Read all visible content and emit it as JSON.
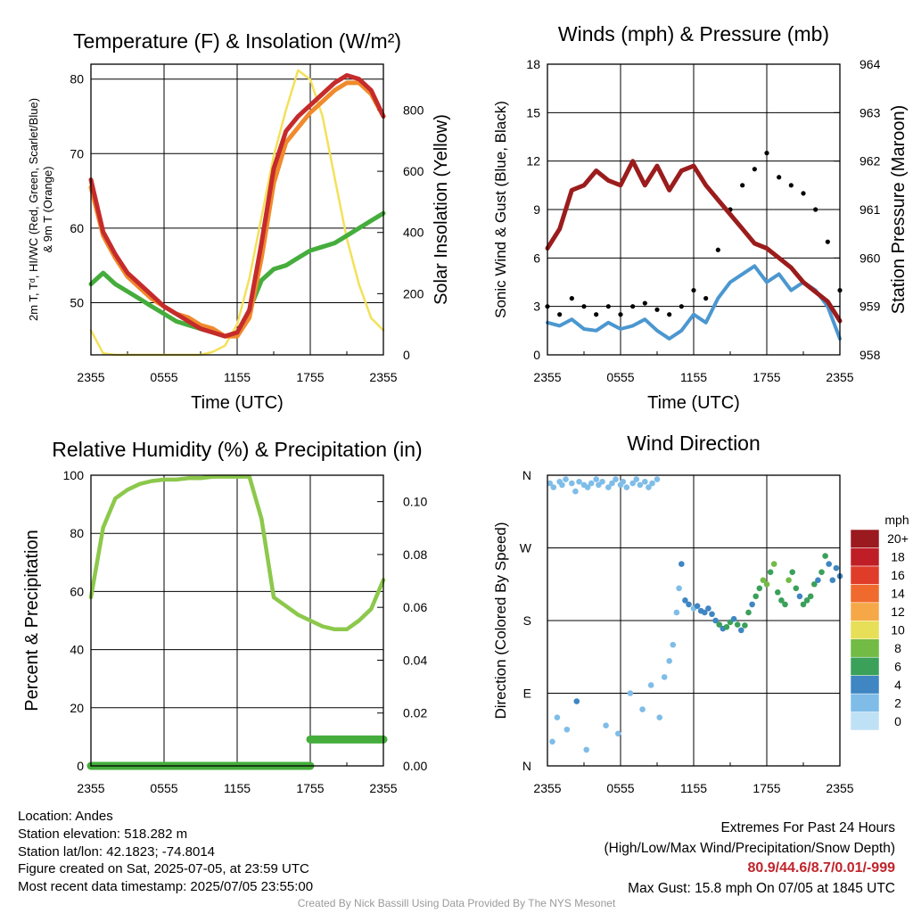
{
  "charts": {
    "temp": {
      "title": "Temperature (F) & Insolation (W/m²)",
      "ylabel_line1": "2m T, Tᵈ, HI/WC (Red, Green, Scarlet/Blue)",
      "ylabel_line2": "& 9m T (Orange)",
      "y2label": "Solar Insolation (Yellow)",
      "xlabel": "Time (UTC)"
    },
    "wind": {
      "title": "Winds (mph) & Pressure (mb)",
      "ylabel": "Sonic Wind & Gust (Blue, Black)",
      "y2label": "Station Pressure (Maroon)",
      "xlabel": "Time (UTC)"
    },
    "rh": {
      "title": "Relative Humidity (%) & Precipitation (in)",
      "ylabel": "Percent & Precipitation"
    },
    "dir": {
      "title": "Wind Direction",
      "ylabel": "Direction (Colored By Speed)",
      "colorbar_unit": "mph"
    }
  },
  "chart_data": [
    {
      "type": "line",
      "id": "temp",
      "title": "Temperature (F) & Insolation (W/m²)",
      "xlabel": "Time (UTC)",
      "x_ticks": [
        "2355",
        "0555",
        "1155",
        "1755",
        "2355"
      ],
      "ylim": [
        43,
        82
      ],
      "y_ticks": [
        50,
        60,
        70,
        80
      ],
      "y2lim": [
        0,
        950
      ],
      "y2_ticks": [
        0,
        200,
        400,
        600,
        800
      ],
      "x_hours": [
        0,
        1,
        2,
        3,
        4,
        5,
        6,
        7,
        8,
        9,
        10,
        11,
        12,
        13,
        14,
        15,
        16,
        17,
        18,
        19,
        20,
        21,
        22,
        23,
        24
      ],
      "series": [
        {
          "axis": "left",
          "color": "#c62b2b",
          "values": [
            66.5,
            59.5,
            56.5,
            54,
            52.5,
            51,
            49.5,
            48.5,
            47.5,
            46.5,
            46,
            45.5,
            46,
            49,
            58,
            68,
            73,
            75,
            76.5,
            78,
            79.5,
            80.5,
            80,
            78.5,
            75
          ]
        },
        {
          "axis": "left",
          "color": "#f08a2c",
          "values": [
            65.5,
            59,
            56,
            53.5,
            52,
            50.5,
            49.5,
            48.5,
            48,
            47,
            46.5,
            45.5,
            45.5,
            48,
            56,
            66,
            71.5,
            73.5,
            75.5,
            77,
            78.5,
            79.5,
            79.5,
            78,
            75
          ]
        },
        {
          "axis": "left",
          "color": "#45ad3c",
          "values": [
            52.5,
            54,
            52.5,
            51.5,
            50.5,
            49.5,
            48.5,
            47.5,
            47,
            46.5,
            46,
            45.5,
            46,
            49,
            53,
            54.5,
            55,
            56,
            57,
            57.5,
            58,
            59,
            60,
            61,
            62
          ]
        },
        {
          "axis": "right",
          "color": "#f3e15a",
          "values": [
            80,
            5,
            0,
            0,
            0,
            0,
            0,
            0,
            0,
            0,
            10,
            30,
            100,
            250,
            450,
            650,
            800,
            930,
            900,
            780,
            580,
            380,
            230,
            120,
            80
          ]
        }
      ]
    },
    {
      "type": "line",
      "id": "wind",
      "title": "Winds (mph) & Pressure (mb)",
      "xlabel": "Time (UTC)",
      "ylabel": "Sonic Wind & Gust (Blue, Black)",
      "y2label": "Station Pressure (Maroon)",
      "x_ticks": [
        "2355",
        "0555",
        "1155",
        "1755",
        "2355"
      ],
      "ylim": [
        0,
        18
      ],
      "y_ticks": [
        0,
        3,
        6,
        9,
        12,
        15,
        18
      ],
      "y2lim": [
        958,
        964
      ],
      "y2_ticks": [
        958,
        959,
        960,
        961,
        962,
        963,
        964
      ],
      "x_hours": [
        0,
        1,
        2,
        3,
        4,
        5,
        6,
        7,
        8,
        9,
        10,
        11,
        12,
        13,
        14,
        15,
        16,
        17,
        18,
        19,
        20,
        21,
        22,
        23,
        24
      ],
      "series": [
        {
          "axis": "right",
          "color": "#9b1c1c",
          "values": [
            960.2,
            960.6,
            961.4,
            961.5,
            961.8,
            961.6,
            961.5,
            962,
            961.5,
            961.9,
            961.4,
            961.8,
            961.9,
            961.5,
            961.2,
            960.9,
            960.6,
            960.3,
            960.2,
            960,
            959.8,
            959.5,
            959.3,
            959.1,
            958.7
          ]
        },
        {
          "axis": "left",
          "color": "#4b97d0",
          "values": [
            2,
            1.8,
            2.2,
            1.6,
            1.5,
            2,
            1.6,
            1.8,
            2.2,
            1.5,
            1,
            1.5,
            2.5,
            2,
            3.5,
            4.5,
            5,
            5.5,
            4.5,
            5,
            4,
            4.5,
            4,
            3,
            1
          ]
        },
        {
          "axis": "left",
          "color": "#000000",
          "values": [
            3,
            2.5,
            3.5,
            3,
            2.5,
            3,
            2.5,
            3,
            3.2,
            2.8,
            2.5,
            3,
            4,
            3.5,
            6.5,
            9,
            10.5,
            11.5,
            12.5,
            11,
            10.5,
            10,
            9,
            7,
            4
          ]
        }
      ]
    },
    {
      "type": "line",
      "id": "rh",
      "title": "Relative Humidity (%) & Precipitation (in)",
      "ylabel": "Percent & Precipitation",
      "x_ticks": [
        "2355",
        "0555",
        "1155",
        "1755",
        "2355"
      ],
      "ylim": [
        0,
        100
      ],
      "y_ticks": [
        0,
        20,
        40,
        60,
        80,
        100
      ],
      "y2lim": [
        0,
        0.11
      ],
      "y2_ticks": [
        0.0,
        0.02,
        0.04,
        0.06,
        0.08,
        0.1
      ],
      "y2_tick_labels": [
        "0.00",
        "0.02",
        "0.04",
        "0.06",
        "0.08",
        "0.10"
      ],
      "x_hours": [
        0,
        1,
        2,
        3,
        4,
        5,
        6,
        7,
        8,
        9,
        10,
        11,
        12,
        13,
        14,
        15,
        16,
        17,
        18,
        19,
        20,
        21,
        22,
        23,
        24
      ],
      "series": [
        {
          "axis": "left",
          "color": "#8cc84b",
          "values": [
            58,
            82,
            92,
            95,
            97,
            98,
            98.5,
            98.5,
            99,
            99,
            99.5,
            99.5,
            99.5,
            99.5,
            85,
            58,
            55,
            52,
            50,
            48,
            47,
            47,
            50,
            54,
            64
          ]
        },
        {
          "axis": "right",
          "color": "#45ad3c",
          "values": [
            0,
            0,
            0,
            0,
            0,
            0,
            0,
            0,
            0,
            0,
            0,
            0,
            0,
            0,
            0,
            0,
            0,
            0,
            0.01,
            0.01,
            0.01,
            0.01,
            0.01,
            0.01,
            0.01
          ]
        }
      ]
    },
    {
      "type": "scatter",
      "id": "dir",
      "title": "Wind Direction",
      "ylabel": "Direction (Colored By Speed)",
      "x_ticks": [
        "2355",
        "0555",
        "1155",
        "1755",
        "2355"
      ],
      "y_tick_labels": [
        "N",
        "E",
        "S",
        "W",
        "N"
      ],
      "ylim": [
        0,
        360
      ],
      "colorbar": {
        "unit": "mph",
        "labels": [
          "0",
          "2",
          "4",
          "6",
          "8",
          "10",
          "12",
          "14",
          "16",
          "18",
          "20+"
        ],
        "colors": [
          "#bfe1f6",
          "#7fbde8",
          "#3f86c2",
          "#3aa05a",
          "#72bb45",
          "#e6df57",
          "#f6a848",
          "#ef6a2c",
          "#e03c2a",
          "#c01e26",
          "#9a1a1f"
        ]
      },
      "x_hours": [
        0.2,
        0.5,
        1,
        1.2,
        1.5,
        2,
        2.3,
        2.6,
        3,
        3.3,
        3.6,
        4,
        4.2,
        4.5,
        5,
        5.3,
        5.6,
        6,
        6.2,
        6.5,
        7,
        7.3,
        7.6,
        8,
        8.3,
        8.6,
        9,
        0.4,
        0.8,
        1.6,
        2.4,
        3.2,
        4.8,
        5.8,
        6.8,
        7.8,
        8.5,
        9.2,
        9.6,
        10,
        10.3,
        10.6,
        10.8,
        11,
        11.3,
        11.6,
        12,
        12.3,
        12.6,
        12.9,
        13.2,
        13.5,
        13.8,
        14.1,
        14.4,
        14.7,
        15,
        15.3,
        15.6,
        15.9,
        16.2,
        16.5,
        16.8,
        17.1,
        17.4,
        17.7,
        18,
        18.3,
        18.6,
        18.9,
        19.2,
        19.5,
        19.8,
        20.1,
        20.4,
        20.7,
        21,
        21.3,
        21.6,
        21.9,
        22.2,
        22.5,
        22.8,
        23.1,
        23.4,
        23.7,
        24
      ],
      "directions": [
        350,
        345,
        352,
        348,
        355,
        350,
        340,
        352,
        348,
        345,
        350,
        355,
        348,
        352,
        345,
        350,
        355,
        348,
        352,
        345,
        350,
        355,
        348,
        352,
        345,
        350,
        355,
        30,
        60,
        45,
        80,
        20,
        50,
        40,
        90,
        70,
        100,
        60,
        110,
        130,
        150,
        190,
        220,
        250,
        205,
        200,
        195,
        198,
        192,
        190,
        195,
        188,
        180,
        175,
        170,
        172,
        178,
        182,
        175,
        168,
        174,
        190,
        200,
        210,
        220,
        230,
        225,
        240,
        250,
        215,
        205,
        200,
        230,
        240,
        220,
        210,
        200,
        205,
        210,
        225,
        230,
        240,
        260,
        250,
        230,
        245,
        235
      ],
      "speeds": [
        1,
        1,
        1.5,
        1,
        2,
        1,
        1.5,
        1,
        2,
        1,
        1,
        1.5,
        1,
        2,
        1,
        1.5,
        1,
        2,
        1,
        1,
        1.5,
        1,
        2,
        1,
        1,
        1.5,
        1,
        2,
        1,
        1.5,
        3,
        1,
        2,
        1,
        1.5,
        2,
        1,
        2.5,
        1,
        1.5,
        2,
        1,
        2.5,
        3,
        3.5,
        3,
        2.5,
        3.5,
        3,
        4,
        3.5,
        4,
        4.5,
        5,
        4,
        6,
        5.5,
        3.5,
        5,
        4,
        6,
        5,
        4.5,
        5,
        6,
        7,
        8,
        6.5,
        7,
        5,
        6,
        5.5,
        7,
        6,
        5,
        4.5,
        5.5,
        6,
        5,
        6.5,
        4,
        5,
        5.5,
        4.5,
        4,
        3.5,
        3
      ]
    }
  ],
  "info": {
    "location": "Location: Andes",
    "elevation": "Station elevation: 518.282 m",
    "latlon": "Station lat/lon: 42.1823; -74.8014",
    "created": "Figure created on Sat, 2025-07-05, at 23:59 UTC",
    "recent": "Most recent data timestamp: 2025/07/05 23:55:00"
  },
  "extremes": {
    "heading": "Extremes For Past 24 Hours",
    "subheading": "(High/Low/Max Wind/Precipitation/Snow Depth)",
    "values": "80.9/44.6/8.7/0.01/-999",
    "max_gust": "Max Gust: 15.8 mph On 07/05 at 1845 UTC"
  },
  "credit": "Created By Nick Bassill Using Data Provided By The NYS Mesonet"
}
